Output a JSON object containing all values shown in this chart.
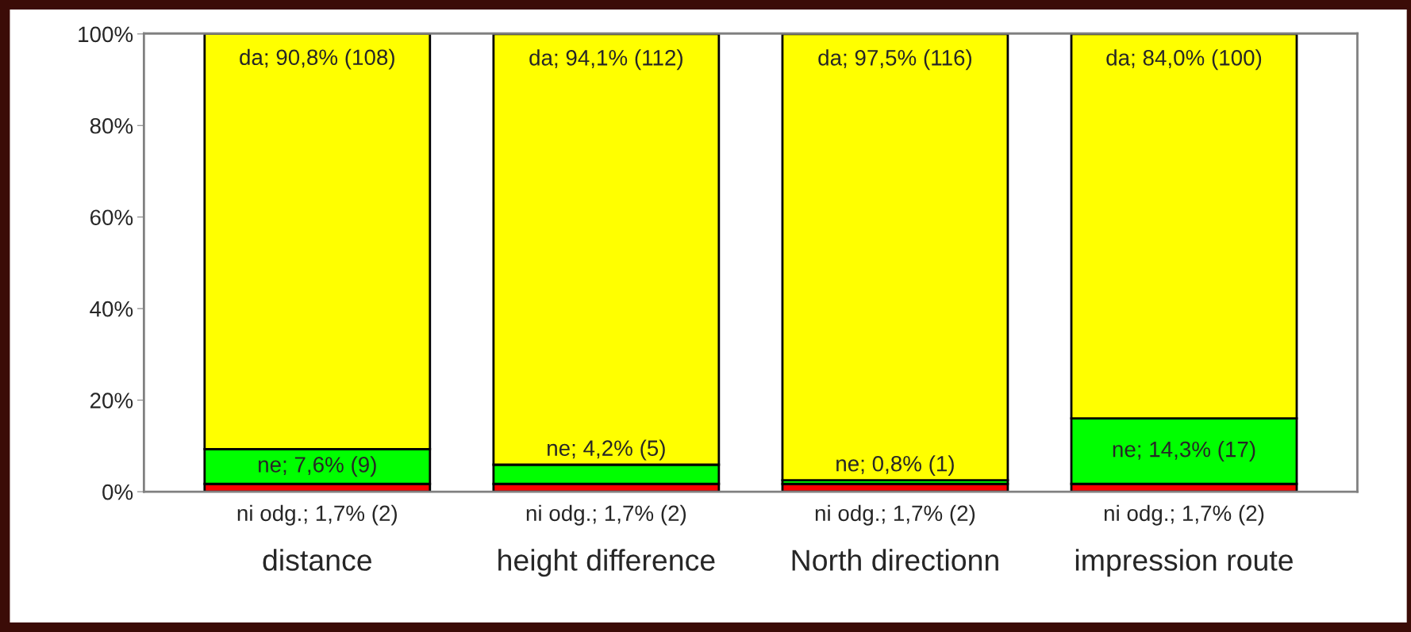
{
  "chart_data": {
    "type": "bar",
    "stacked": true,
    "categories": [
      "distance",
      "height difference",
      "North directionn",
      "impression route"
    ],
    "series": [
      {
        "color": "#ff0000",
        "values": [
          1.7,
          1.7,
          1.7,
          1.7
        ],
        "value_labels": [
          "ni odg.; 1,7% (2)",
          "ni odg.; 1,7% (2)",
          "ni odg.; 1,7% (2)",
          "ni odg.; 1,7% (2)"
        ]
      },
      {
        "color": "#00ff00",
        "values": [
          7.6,
          4.2,
          0.8,
          14.3
        ],
        "value_labels": [
          "ne; 7,6% (9)",
          "ne; 4,2% (5)",
          "ne; 0,8% (1)",
          "ne; 14,3% (17)"
        ]
      },
      {
        "color": "#ffff00",
        "values": [
          90.8,
          94.1,
          97.5,
          84.0
        ],
        "value_labels": [
          "da; 90,8% (108)",
          "da; 94,1% (112)",
          "da; 97,5% (116)",
          "da; 84,0% (100)"
        ]
      }
    ],
    "ylim": [
      0,
      100.1
    ],
    "yticks": [
      {
        "value": 0,
        "label": "0%"
      },
      {
        "value": 20,
        "label": "20%"
      },
      {
        "value": 40,
        "label": "40%"
      },
      {
        "value": 60,
        "label": "60%"
      },
      {
        "value": 80,
        "label": "80%"
      },
      {
        "value": 100,
        "label": "100%"
      }
    ],
    "grid": false,
    "legend": false
  }
}
